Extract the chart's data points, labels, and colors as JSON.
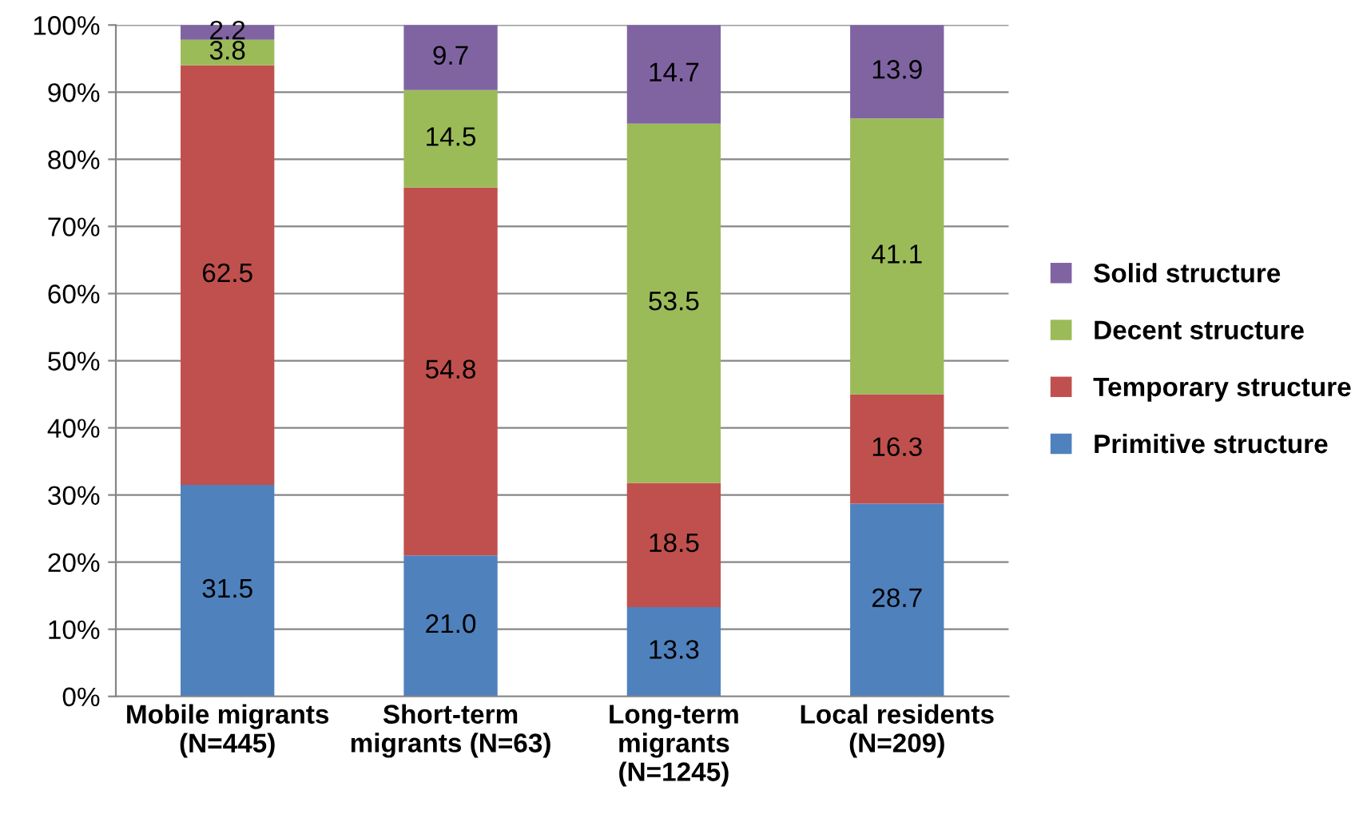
{
  "chart_data": {
    "type": "bar",
    "stacked": true,
    "categories": [
      "Mobile migrants\n(N=445)",
      "Short-term\nmigrants (N=63)",
      "Long-term\nmigrants\n(N=1245)",
      "Local residents\n(N=209)"
    ],
    "series": [
      {
        "name": "Primitive structure",
        "color": "#4f81bd",
        "values": [
          31.5,
          21.0,
          13.3,
          28.7
        ],
        "value_labels": [
          "31.5",
          "21.0",
          "13.3",
          "28.7"
        ]
      },
      {
        "name": "Temporary structure",
        "color": "#c0504d",
        "values": [
          62.5,
          54.8,
          18.5,
          16.3
        ],
        "value_labels": [
          "62.5",
          "54.8",
          "18.5",
          "16.3"
        ]
      },
      {
        "name": "Decent structure",
        "color": "#9bbb59",
        "values": [
          3.8,
          14.5,
          53.5,
          41.1
        ],
        "value_labels": [
          "3.8",
          "14.5",
          "53.5",
          "41.1"
        ]
      },
      {
        "name": "Solid structure",
        "color": "#8064a2",
        "values": [
          2.2,
          9.7,
          14.7,
          13.9
        ],
        "value_labels": [
          "2.2",
          "9.7",
          "14.7",
          "13.9"
        ]
      }
    ],
    "ylim": [
      0,
      100
    ],
    "yticks": [
      {
        "value": 0,
        "label": "0%"
      },
      {
        "value": 10,
        "label": "10%"
      },
      {
        "value": 20,
        "label": "20%"
      },
      {
        "value": 30,
        "label": "30%"
      },
      {
        "value": 40,
        "label": "40%"
      },
      {
        "value": 50,
        "label": "50%"
      },
      {
        "value": 60,
        "label": "60%"
      },
      {
        "value": 70,
        "label": "70%"
      },
      {
        "value": 80,
        "label": "80%"
      },
      {
        "value": 90,
        "label": "90%"
      },
      {
        "value": 100,
        "label": "100%"
      }
    ],
    "grid": "y",
    "legend": "right"
  }
}
